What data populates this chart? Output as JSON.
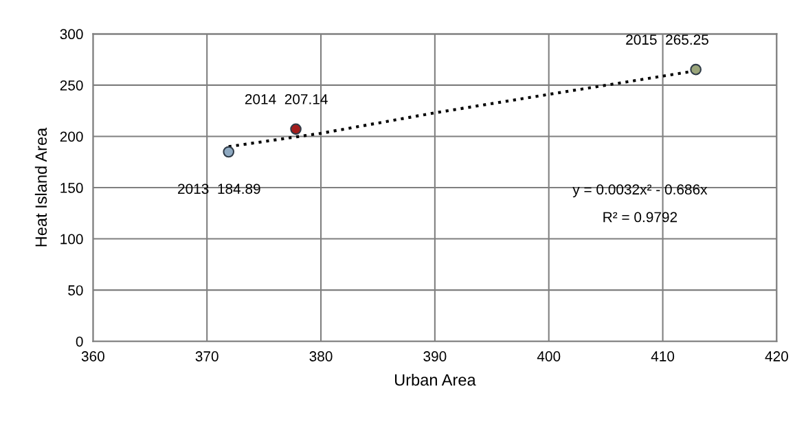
{
  "chart_data": {
    "type": "scatter",
    "xlabel": "Urban Area",
    "ylabel": "Heat Island Area",
    "xlim": [
      360,
      420
    ],
    "xticks": [
      360,
      370,
      380,
      390,
      400,
      410,
      420
    ],
    "ylim": [
      0,
      300
    ],
    "yticks": [
      0,
      50,
      100,
      150,
      200,
      250,
      300
    ],
    "grid": true,
    "series": [
      {
        "marker": "circle",
        "x": [
          371.9,
          377.8,
          412.9
        ],
        "values": [
          184.89,
          207.14,
          265.25
        ],
        "colors": [
          "#8ea9c1",
          "#a31c1c",
          "#9aa57a"
        ]
      },
      {
        "type": "line",
        "line_style": "dotted",
        "color": "#000000",
        "x": [
          371.9,
          380,
          390,
          400,
          412.9
        ],
        "values": [
          190,
          203,
          223,
          241,
          264
        ]
      }
    ],
    "annotations": [
      {
        "text": "2013  184.89",
        "x": 371.9,
        "y": 184.89
      },
      {
        "text": "2014  207.14",
        "x": 377.8,
        "y": 207.14
      },
      {
        "text": "2015  265.25",
        "x": 412.9,
        "y": 265.25
      },
      "y = 0.0032x² - 0.686x",
      "R² = 0.9792"
    ]
  }
}
